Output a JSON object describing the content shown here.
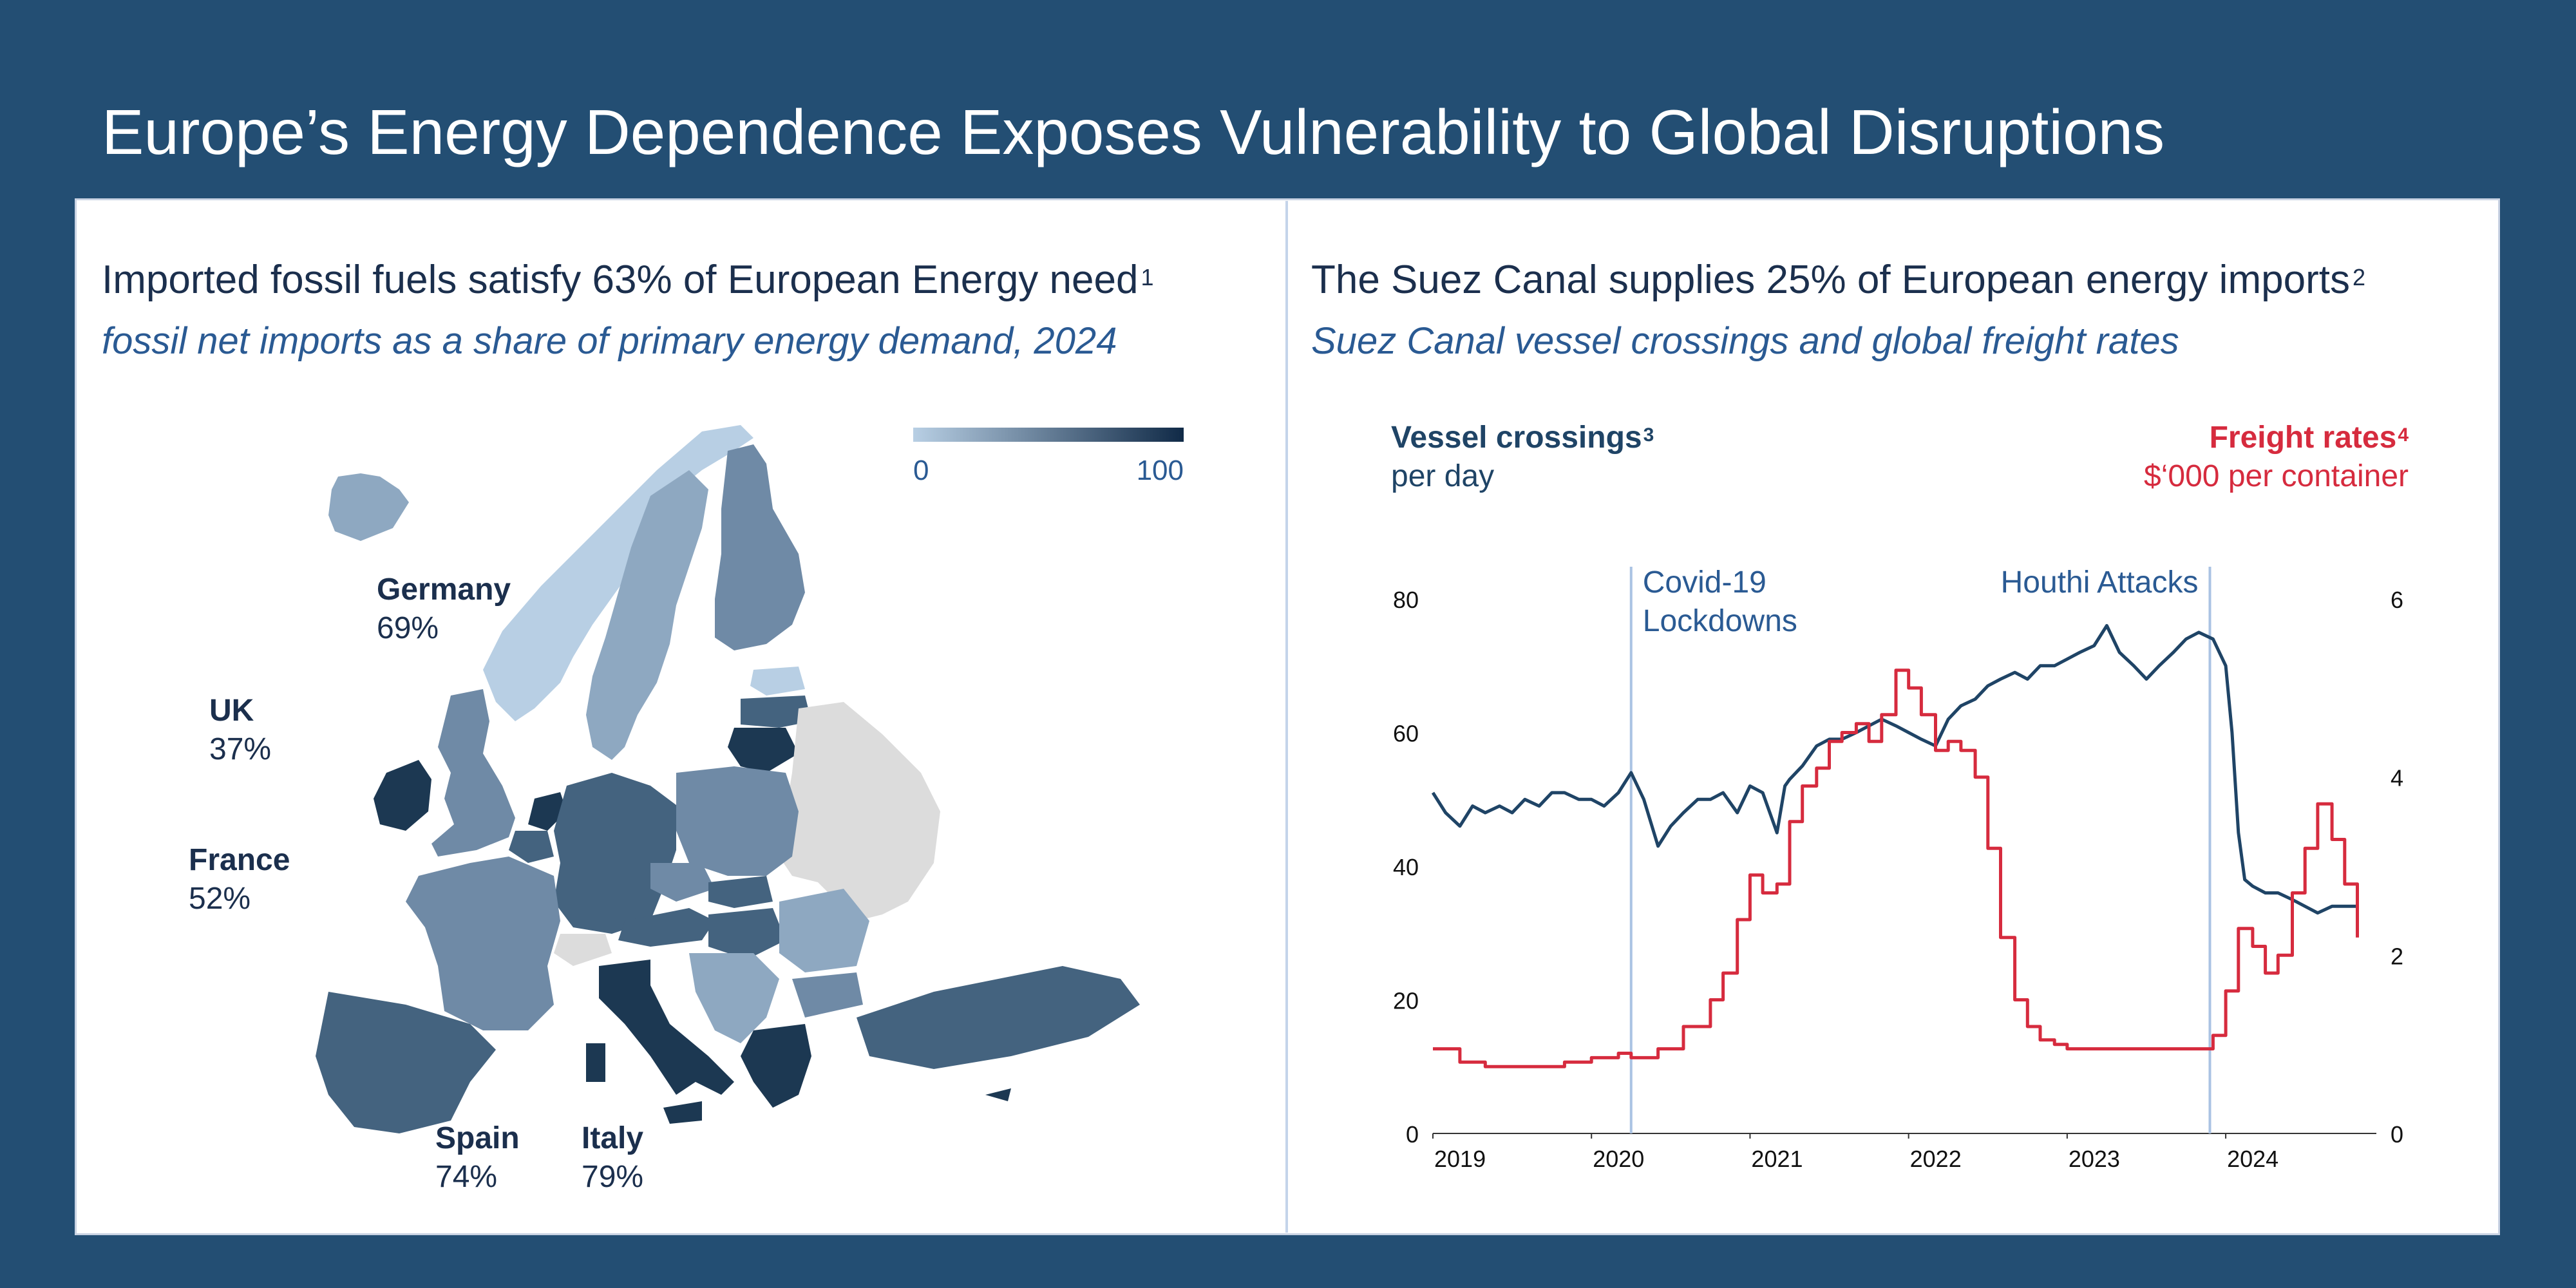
{
  "page": {
    "title": "Europe’s Energy Dependence Exposes Vulnerability to Global Disruptions"
  },
  "colors": {
    "background": "#234e73",
    "vessel_line": "#1f4466",
    "freight_line": "#d62b3e",
    "map_dark": "#1c3852",
    "map_mid": "#44637f",
    "map_light": "#8ea8c1",
    "map_lightest": "#b8cfe4",
    "map_nodata": "#dcdcdc"
  },
  "left_panel": {
    "heading": "Imported fossil fuels satisfy 63% of European Energy need",
    "heading_note": "1",
    "subheading": "fossil net imports as a share of primary energy demand, 2024",
    "legend": {
      "min_label": "0",
      "max_label": "100"
    },
    "labels": [
      {
        "name": "Germany",
        "value": "69%"
      },
      {
        "name": "UK",
        "value": "37%"
      },
      {
        "name": "France",
        "value": "52%"
      },
      {
        "name": "Spain",
        "value": "74%"
      },
      {
        "name": "Italy",
        "value": "79%"
      }
    ]
  },
  "right_panel": {
    "heading": "The Suez Canal supplies 25% of European energy imports",
    "heading_note": "2",
    "subheading": "Suez Canal vessel crossings and global freight rates",
    "left_axis": {
      "title": "Vessel crossings",
      "note": "3",
      "unit": "per day"
    },
    "right_axis": {
      "title": "Freight rates",
      "note": "4",
      "unit": "$‘000 per container"
    }
  },
  "chart_data": {
    "type": "line",
    "x_range": [
      "2019-01",
      "2024-11"
    ],
    "x_ticks": [
      "2019",
      "2020",
      "2021",
      "2022",
      "2023",
      "2024"
    ],
    "y_left": {
      "range": [
        0,
        80
      ],
      "ticks": [
        "0",
        "20",
        "40",
        "60",
        "80"
      ]
    },
    "y_right": {
      "range": [
        0,
        6
      ],
      "ticks": [
        "0",
        "2",
        "4",
        "6"
      ]
    },
    "annotations": [
      {
        "label_lines": [
          "Covid-19",
          "Lockdowns"
        ],
        "x": 2020.25
      },
      {
        "label_lines": [
          "Houthi Attacks"
        ],
        "x": 2023.9
      }
    ],
    "series": [
      {
        "axis": "left",
        "x": [
          2019.0,
          2019.08,
          2019.17,
          2019.25,
          2019.33,
          2019.42,
          2019.5,
          2019.58,
          2019.67,
          2019.75,
          2019.83,
          2019.92,
          2020.0,
          2020.08,
          2020.17,
          2020.25,
          2020.33,
          2020.42,
          2020.5,
          2020.58,
          2020.67,
          2020.75,
          2020.83,
          2020.92,
          2021.0,
          2021.08,
          2021.17,
          2021.22,
          2021.25,
          2021.33,
          2021.42,
          2021.5,
          2021.58,
          2021.67,
          2021.75,
          2021.83,
          2021.92,
          2022.0,
          2022.08,
          2022.17,
          2022.25,
          2022.33,
          2022.42,
          2022.5,
          2022.58,
          2022.67,
          2022.75,
          2022.83,
          2022.92,
          2023.0,
          2023.08,
          2023.17,
          2023.25,
          2023.33,
          2023.42,
          2023.5,
          2023.58,
          2023.67,
          2023.75,
          2023.83,
          2023.92,
          2024.0,
          2024.04,
          2024.08,
          2024.12,
          2024.17,
          2024.25,
          2024.33,
          2024.42,
          2024.5,
          2024.58,
          2024.67,
          2024.75,
          2024.83
        ],
        "y": [
          51,
          48,
          46,
          49,
          48,
          49,
          48,
          50,
          49,
          51,
          51,
          50,
          50,
          49,
          51,
          54,
          50,
          43,
          46,
          48,
          50,
          50,
          51,
          48,
          52,
          51,
          45,
          52,
          53,
          55,
          58,
          59,
          59,
          60,
          61,
          62,
          61,
          60,
          59,
          58,
          62,
          64,
          65,
          67,
          68,
          69,
          68,
          70,
          70,
          71,
          72,
          73,
          76,
          72,
          70,
          68,
          70,
          72,
          74,
          75,
          74,
          70,
          60,
          45,
          38,
          37,
          36,
          36,
          35,
          34,
          33,
          34,
          34,
          34
        ]
      },
      {
        "axis": "right",
        "x": [
          2019.0,
          2019.17,
          2019.33,
          2019.5,
          2019.67,
          2019.83,
          2020.0,
          2020.17,
          2020.25,
          2020.42,
          2020.58,
          2020.75,
          2020.83,
          2020.92,
          2021.0,
          2021.08,
          2021.17,
          2021.25,
          2021.33,
          2021.42,
          2021.5,
          2021.58,
          2021.67,
          2021.75,
          2021.83,
          2021.92,
          2022.0,
          2022.08,
          2022.17,
          2022.25,
          2022.33,
          2022.42,
          2022.5,
          2022.58,
          2022.67,
          2022.75,
          2022.83,
          2022.92,
          2023.0,
          2023.17,
          2023.33,
          2023.5,
          2023.67,
          2023.83,
          2023.92,
          2024.0,
          2024.08,
          2024.17,
          2024.25,
          2024.33,
          2024.42,
          2024.5,
          2024.58,
          2024.67,
          2024.75,
          2024.83
        ],
        "y": [
          0.95,
          0.8,
          0.75,
          0.75,
          0.75,
          0.8,
          0.85,
          0.9,
          0.85,
          0.95,
          1.2,
          1.5,
          1.8,
          2.4,
          2.9,
          2.7,
          2.8,
          3.5,
          3.9,
          4.1,
          4.4,
          4.5,
          4.6,
          4.4,
          4.7,
          5.2,
          5.0,
          4.7,
          4.3,
          4.4,
          4.3,
          4.0,
          3.2,
          2.2,
          1.5,
          1.2,
          1.05,
          1.0,
          0.95,
          0.95,
          0.95,
          0.95,
          0.95,
          0.95,
          1.1,
          1.6,
          2.3,
          2.1,
          1.8,
          2.0,
          2.7,
          3.2,
          3.7,
          3.3,
          2.8,
          2.2
        ]
      }
    ]
  }
}
